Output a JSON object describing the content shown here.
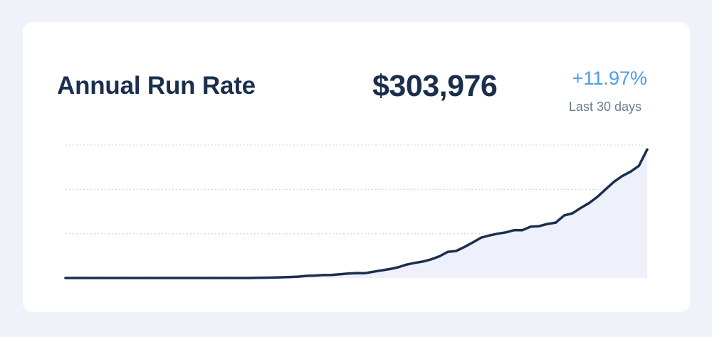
{
  "card": {
    "title": "Annual Run Rate",
    "value": "$303,976",
    "change": "+11.97%",
    "period": "Last 30 days"
  },
  "colors": {
    "title": "#1b2f4d",
    "line": "#1b2f4d",
    "area": "#eef1fb",
    "change": "#4c9ee8",
    "grid": "#d5d9df"
  },
  "chart_data": {
    "type": "area",
    "title": "",
    "xlabel": "",
    "ylabel": "",
    "grid": true,
    "gridlines_y": [
      1,
      2,
      3
    ],
    "x": [
      0,
      1,
      2,
      3,
      4,
      5,
      6,
      7,
      8,
      9,
      10,
      11,
      12,
      13,
      14,
      15,
      16,
      17,
      18,
      19,
      20,
      21,
      22,
      23,
      24,
      25,
      26,
      27,
      28,
      29,
      30,
      31,
      32,
      33,
      34,
      35,
      36,
      37,
      38,
      39,
      40,
      41,
      42,
      43,
      44,
      45,
      46,
      47,
      48,
      49,
      50,
      51,
      52,
      53,
      54,
      55,
      56,
      57,
      58,
      59,
      60,
      61,
      62,
      63,
      64,
      65,
      66,
      67,
      68,
      69,
      70
    ],
    "values": [
      0,
      0,
      0,
      0,
      0,
      0,
      0,
      0,
      0,
      0,
      0,
      0,
      0,
      0,
      0,
      0,
      0,
      0,
      0,
      0,
      0,
      0,
      0,
      0.003,
      0.006,
      0.01,
      0.016,
      0.023,
      0.03,
      0.048,
      0.055,
      0.065,
      0.068,
      0.085,
      0.1,
      0.11,
      0.108,
      0.14,
      0.17,
      0.2,
      0.24,
      0.3,
      0.34,
      0.37,
      0.42,
      0.49,
      0.59,
      0.61,
      0.7,
      0.8,
      0.91,
      0.96,
      1.0,
      1.03,
      1.08,
      1.08,
      1.16,
      1.17,
      1.22,
      1.25,
      1.41,
      1.46,
      1.58,
      1.69,
      1.83,
      2.0,
      2.17,
      2.3,
      2.4,
      2.53,
      2.9
    ],
    "ylim": [
      0,
      3
    ]
  }
}
